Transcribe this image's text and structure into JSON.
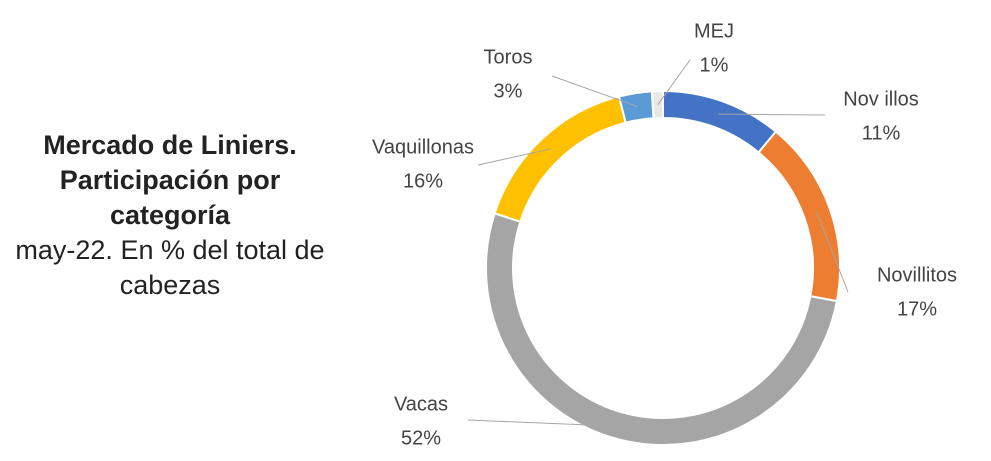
{
  "chart_data": {
    "type": "donut",
    "title": "Mercado de Liniers. Participación por categoría",
    "subtitle": "may-22. En % del total de cabezas",
    "categories": [
      "Nov illos",
      "Novillitos",
      "Vacas",
      "Vaquillonas",
      "Toros",
      "MEJ"
    ],
    "values": [
      11,
      17,
      52,
      16,
      3,
      1
    ],
    "value_labels": [
      "11%",
      "17%",
      "52%",
      "16%",
      "3%",
      "1%"
    ],
    "colors": [
      "#4472c4",
      "#ed7d31",
      "#a5a5a5",
      "#ffc000",
      "#5b9bd5",
      "#e8e8e8"
    ]
  }
}
